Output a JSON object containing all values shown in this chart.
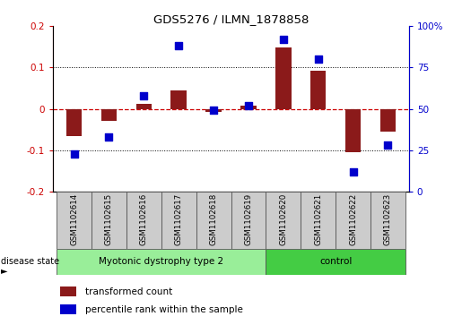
{
  "title": "GDS5276 / ILMN_1878858",
  "samples": [
    "GSM1102614",
    "GSM1102615",
    "GSM1102616",
    "GSM1102617",
    "GSM1102618",
    "GSM1102619",
    "GSM1102620",
    "GSM1102621",
    "GSM1102622",
    "GSM1102623"
  ],
  "bar_values": [
    -0.065,
    -0.028,
    0.012,
    0.045,
    -0.008,
    0.008,
    0.148,
    0.093,
    -0.105,
    -0.055
  ],
  "dot_values": [
    23,
    33,
    58,
    88,
    49,
    52,
    92,
    80,
    12,
    28
  ],
  "ylim_left": [
    -0.2,
    0.2
  ],
  "ylim_right": [
    0,
    100
  ],
  "yticks_left": [
    -0.2,
    -0.1,
    0.0,
    0.1,
    0.2
  ],
  "yticks_right": [
    0,
    25,
    50,
    75,
    100
  ],
  "bar_color": "#8B1A1A",
  "dot_color": "#0000CC",
  "disease_groups": [
    {
      "label": "Myotonic dystrophy type 2",
      "start": 0,
      "end": 6,
      "color": "#99EE99"
    },
    {
      "label": "control",
      "start": 6,
      "end": 10,
      "color": "#44CC44"
    }
  ],
  "legend_items": [
    {
      "label": "transformed count",
      "color": "#8B1A1A"
    },
    {
      "label": "percentile rank within the sample",
      "color": "#0000CC"
    }
  ],
  "disease_state_label": "disease state",
  "dotted_line_color": "#000000",
  "zero_line_color": "#CC0000",
  "background_color": "#FFFFFF",
  "axis_label_color_left": "#CC0000",
  "axis_label_color_right": "#0000CC",
  "label_box_color": "#CCCCCC"
}
